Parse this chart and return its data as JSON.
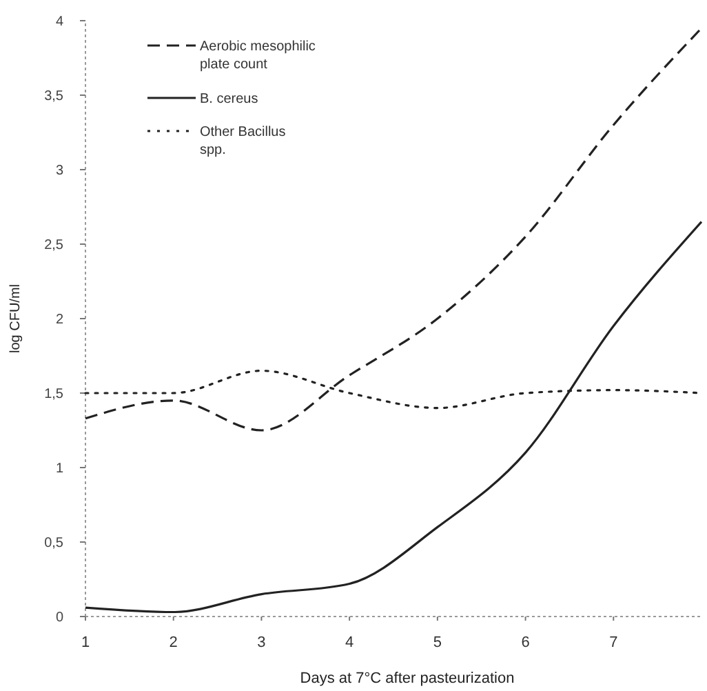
{
  "chart_data": {
    "type": "line",
    "xlabel": "Days at 7°C  after pasteurization",
    "ylabel": "log CFU/ml",
    "x": [
      1,
      2,
      3,
      4,
      5,
      6,
      7,
      8
    ],
    "xlim": [
      1,
      8
    ],
    "xticks": [
      1,
      2,
      3,
      4,
      5,
      6,
      7
    ],
    "ylim": [
      0,
      4
    ],
    "yticks": [
      {
        "value": 0,
        "label": "0"
      },
      {
        "value": 0.5,
        "label": "0,5"
      },
      {
        "value": 1,
        "label": "1"
      },
      {
        "value": 1.5,
        "label": "1,5"
      },
      {
        "value": 2,
        "label": "2"
      },
      {
        "value": 2.5,
        "label": "2,5"
      },
      {
        "value": 3,
        "label": "3"
      },
      {
        "value": 3.5,
        "label": "3,5"
      },
      {
        "value": 4,
        "label": "4"
      }
    ],
    "grid": false,
    "legend": "top left",
    "marker": "none",
    "series": [
      {
        "name": "Aerobic mesophilic plate count",
        "color": "#222222",
        "line_style": "dashed",
        "values": [
          1.33,
          1.45,
          1.25,
          1.62,
          2.0,
          2.55,
          3.3,
          3.95
        ]
      },
      {
        "name": "B. cereus",
        "color": "#222222",
        "line_style": "solid",
        "values": [
          0.06,
          0.03,
          0.15,
          0.22,
          0.6,
          1.1,
          1.95,
          2.65
        ]
      },
      {
        "name": "Other Bacillus spp.",
        "color": "#222222",
        "line_style": "dotted",
        "values": [
          1.5,
          1.5,
          1.65,
          1.5,
          1.4,
          1.5,
          1.52,
          1.5
        ]
      }
    ]
  }
}
